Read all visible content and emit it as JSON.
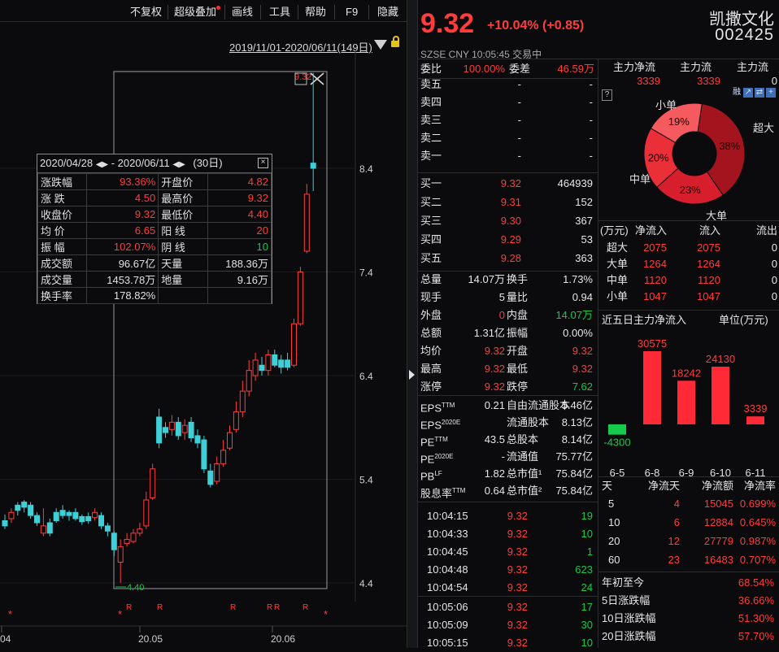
{
  "toolbar": {
    "items": [
      "不复权",
      "超级叠加",
      "画线",
      "工具",
      "帮助",
      "F9",
      "隐藏"
    ],
    "range": "2019/11/01-2020/06/11(149日)"
  },
  "chart_data": {
    "type": "candlestick",
    "yticks": [
      8.4,
      7.4,
      6.4,
      5.4,
      4.4
    ],
    "xticks": [
      "04",
      "20.05",
      "20.06"
    ],
    "low_marker": "4.40",
    "high_marker": "9.32",
    "candles": [
      {
        "o": 4.95,
        "c": 5.0,
        "h": 5.06,
        "l": 4.92,
        "up": false
      },
      {
        "o": 5.02,
        "c": 5.08,
        "h": 5.12,
        "l": 4.98,
        "up": true
      },
      {
        "o": 5.1,
        "c": 5.15,
        "h": 5.18,
        "l": 5.05,
        "up": false
      },
      {
        "o": 5.13,
        "c": 5.18,
        "h": 5.2,
        "l": 5.08,
        "up": false
      },
      {
        "o": 5.15,
        "c": 5.05,
        "h": 5.18,
        "l": 5.02,
        "up": false
      },
      {
        "o": 5.05,
        "c": 4.98,
        "h": 5.08,
        "l": 4.95,
        "up": false
      },
      {
        "o": 4.95,
        "c": 4.88,
        "h": 5.12,
        "l": 4.85,
        "up": true
      },
      {
        "o": 4.88,
        "c": 4.98,
        "h": 5.02,
        "l": 4.85,
        "up": false
      },
      {
        "o": 5.0,
        "c": 5.08,
        "h": 5.12,
        "l": 4.98,
        "up": false
      },
      {
        "o": 5.1,
        "c": 5.05,
        "h": 5.15,
        "l": 5.02,
        "up": false
      },
      {
        "o": 5.05,
        "c": 5.08,
        "h": 5.1,
        "l": 5.0,
        "up": false
      },
      {
        "o": 5.08,
        "c": 5.02,
        "h": 5.12,
        "l": 5.0,
        "up": false
      },
      {
        "o": 5.04,
        "c": 4.99,
        "h": 5.06,
        "l": 4.96,
        "up": false
      },
      {
        "o": 5.0,
        "c": 5.04,
        "h": 5.08,
        "l": 4.97,
        "up": false
      },
      {
        "o": 5.08,
        "c": 5.03,
        "h": 5.12,
        "l": 5.0,
        "up": true
      },
      {
        "o": 5.05,
        "c": 4.95,
        "h": 5.08,
        "l": 4.92,
        "up": false
      },
      {
        "o": 4.95,
        "c": 4.9,
        "h": 4.98,
        "l": 4.85,
        "up": false
      },
      {
        "o": 4.88,
        "c": 4.72,
        "h": 4.9,
        "l": 4.66,
        "up": false
      },
      {
        "o": 4.6,
        "c": 4.75,
        "h": 4.82,
        "l": 4.4,
        "up": true
      },
      {
        "o": 4.78,
        "c": 4.82,
        "h": 4.88,
        "l": 4.75,
        "up": true
      },
      {
        "o": 4.8,
        "c": 4.88,
        "h": 4.92,
        "l": 4.78,
        "up": true
      },
      {
        "o": 4.88,
        "c": 4.92,
        "h": 4.98,
        "l": 4.85,
        "up": true
      },
      {
        "o": 4.95,
        "c": 5.2,
        "h": 5.28,
        "l": 4.92,
        "up": true
      },
      {
        "o": 5.22,
        "c": 5.5,
        "h": 5.55,
        "l": 5.2,
        "up": true
      },
      {
        "o": 5.75,
        "c": 6.0,
        "h": 6.08,
        "l": 5.7,
        "up": false
      },
      {
        "o": 5.9,
        "c": 5.85,
        "h": 5.95,
        "l": 5.8,
        "up": false
      },
      {
        "o": 5.88,
        "c": 5.95,
        "h": 6.02,
        "l": 5.82,
        "up": true
      },
      {
        "o": 5.95,
        "c": 5.82,
        "h": 6.0,
        "l": 5.78,
        "up": false
      },
      {
        "o": 5.85,
        "c": 5.92,
        "h": 5.98,
        "l": 5.78,
        "up": true
      },
      {
        "o": 5.95,
        "c": 5.8,
        "h": 6.0,
        "l": 5.76,
        "up": false
      },
      {
        "o": 5.82,
        "c": 5.75,
        "h": 5.88,
        "l": 5.7,
        "up": false
      },
      {
        "o": 5.78,
        "c": 5.5,
        "h": 5.82,
        "l": 5.46,
        "up": false
      },
      {
        "o": 5.48,
        "c": 5.35,
        "h": 5.55,
        "l": 5.32,
        "up": false
      },
      {
        "o": 5.38,
        "c": 5.55,
        "h": 5.62,
        "l": 5.35,
        "up": true
      },
      {
        "o": 5.55,
        "c": 5.68,
        "h": 5.78,
        "l": 5.52,
        "up": true
      },
      {
        "o": 5.7,
        "c": 5.85,
        "h": 5.92,
        "l": 5.68,
        "up": true
      },
      {
        "o": 5.88,
        "c": 6.05,
        "h": 6.15,
        "l": 5.85,
        "up": true
      },
      {
        "o": 6.05,
        "c": 6.25,
        "h": 6.35,
        "l": 6.0,
        "up": true
      },
      {
        "o": 6.25,
        "c": 6.45,
        "h": 6.55,
        "l": 6.2,
        "up": true
      },
      {
        "o": 6.4,
        "c": 6.55,
        "h": 6.62,
        "l": 6.35,
        "up": true
      },
      {
        "o": 6.5,
        "c": 6.45,
        "h": 6.58,
        "l": 6.4,
        "up": false
      },
      {
        "o": 6.45,
        "c": 6.6,
        "h": 6.65,
        "l": 6.4,
        "up": true
      },
      {
        "o": 6.6,
        "c": 6.5,
        "h": 6.65,
        "l": 6.48,
        "up": false
      },
      {
        "o": 6.48,
        "c": 6.55,
        "h": 6.6,
        "l": 6.42,
        "up": false
      },
      {
        "o": 6.55,
        "c": 6.48,
        "h": 6.62,
        "l": 6.45,
        "up": false
      },
      {
        "o": 6.5,
        "c": 6.9,
        "h": 6.95,
        "l": 6.48,
        "up": true
      },
      {
        "o": 6.9,
        "c": 7.4,
        "h": 7.45,
        "l": 6.88,
        "up": true
      },
      {
        "o": 7.6,
        "c": 8.15,
        "h": 8.25,
        "l": 7.58,
        "up": true
      },
      {
        "o": 8.4,
        "c": 8.45,
        "h": 9.32,
        "l": 8.18,
        "up": false
      }
    ],
    "r_marks": [
      "R",
      "R",
      "R",
      "R",
      "R",
      "R",
      "R"
    ],
    "star_marks": [
      "*",
      "*",
      "*"
    ]
  },
  "stats": {
    "date_from": "2020/04/28",
    "date_to": "2020/06/11",
    "days": "(30日)",
    "rows": [
      [
        "涨跌幅",
        "93.36%",
        "开盘价",
        "4.82"
      ],
      [
        "涨  跌",
        "4.50",
        "最高价",
        "9.32"
      ],
      [
        "收盘价",
        "9.32",
        "最低价",
        "4.40"
      ],
      [
        "均  价",
        "6.65",
        "阳  线",
        "20"
      ],
      [
        "振  幅",
        "102.07%",
        "阴  线",
        "10"
      ],
      [
        "成交额",
        "96.67亿",
        "天量",
        "188.36万"
      ],
      [
        "成交量",
        "1453.78万",
        "地量",
        "9.16万"
      ],
      [
        "换手率",
        "178.82%",
        "",
        ""
      ]
    ]
  },
  "quote": {
    "price": "9.32",
    "change": "+10.04% (+0.85)",
    "name": "凯撒文化",
    "code": "002425",
    "market": "SZSE  CNY  10:05:45  交易中"
  },
  "weibi": {
    "l1": "委比",
    "v1": "100.00%",
    "l2": "委差",
    "v2": "46.59万"
  },
  "sells": [
    [
      "卖五",
      "-",
      "-"
    ],
    [
      "卖四",
      "-",
      "-"
    ],
    [
      "卖三",
      "-",
      "-"
    ],
    [
      "卖二",
      "-",
      "-"
    ],
    [
      "卖一",
      "-",
      "-"
    ]
  ],
  "buys": [
    [
      "买一",
      "9.32",
      "464939"
    ],
    [
      "买二",
      "9.31",
      "152"
    ],
    [
      "买三",
      "9.30",
      "367"
    ],
    [
      "买四",
      "9.29",
      "53"
    ],
    [
      "买五",
      "9.28",
      "363"
    ]
  ],
  "summary": [
    [
      "总量",
      "14.07万",
      "换手",
      "1.73%"
    ],
    [
      "现手",
      "5",
      "量比",
      "0.94"
    ],
    [
      "外盘",
      "0",
      "内盘",
      "14.07万"
    ],
    [
      "总额",
      "1.31亿",
      "振幅",
      "0.00%"
    ],
    [
      "均价",
      "9.32",
      "开盘",
      "9.32"
    ],
    [
      "最高",
      "9.32",
      "最低",
      "9.32"
    ],
    [
      "涨停",
      "9.32",
      "跌停",
      "7.62"
    ]
  ],
  "fundamentals": [
    [
      "EPS",
      "TTM",
      "0.21",
      "自由流通股本",
      "5.46亿"
    ],
    [
      "EPS",
      "2020E",
      "",
      "流通股本",
      "8.13亿"
    ],
    [
      "PE",
      "TTM",
      "43.5",
      "总股本",
      "8.14亿"
    ],
    [
      "PE",
      "2020E",
      "-",
      "流通值",
      "75.77亿"
    ],
    [
      "PB",
      "LF",
      "1.82",
      "总市值¹",
      "75.84亿"
    ],
    [
      "股息率",
      "TTM",
      "0.64",
      "总市值²",
      "75.84亿"
    ]
  ],
  "ticks": [
    [
      "10:04:15",
      "9.32",
      "19"
    ],
    [
      "10:04:33",
      "9.32",
      "10"
    ],
    [
      "10:04:45",
      "9.32",
      "1"
    ],
    [
      "10:04:48",
      "9.32",
      "623"
    ],
    [
      "10:04:54",
      "9.32",
      "24"
    ],
    [
      "10:05:06",
      "9.32",
      "17"
    ],
    [
      "10:05:09",
      "9.32",
      "30"
    ],
    [
      "10:05:15",
      "9.32",
      "10"
    ]
  ],
  "mainflow": {
    "headers": [
      "主力净流",
      "主力流",
      "主力流"
    ],
    "values": [
      "3339",
      "3339",
      "0"
    ],
    "icons": [
      "融",
      "↗",
      "⇄",
      "+"
    ]
  },
  "pie": {
    "labels": [
      "超大",
      "大单",
      "中单",
      "小单"
    ],
    "values": [
      38,
      23,
      20,
      19
    ],
    "pcts": [
      "38%",
      "23%",
      "20%",
      "19%"
    ],
    "colors": [
      "#a3141f",
      "#d71e2c",
      "#eb2f39",
      "#f55a5e"
    ]
  },
  "flowtable": {
    "headers": [
      "(万元)",
      "净流入",
      "流入",
      "流出"
    ],
    "rows": [
      [
        "超大",
        "2075",
        "2075",
        "0"
      ],
      [
        "大单",
        "1264",
        "1264",
        "0"
      ],
      [
        "中单",
        "1120",
        "1120",
        "0"
      ],
      [
        "小单",
        "1047",
        "1047",
        "0"
      ]
    ]
  },
  "five_day": {
    "title": "近五日主力净流入",
    "unit": "单位(万元)",
    "categories": [
      "6-5",
      "6-8",
      "6-9",
      "6-10",
      "6-11"
    ],
    "values": [
      -4300,
      30575,
      18242,
      24130,
      3339
    ],
    "labels": [
      "-4300",
      "30575",
      "18242",
      "24130",
      "3339"
    ]
  },
  "period_table": {
    "headers": [
      "天",
      "净流天",
      "净流额",
      "净流率"
    ],
    "rows": [
      [
        "5",
        "4",
        "15045",
        "0.699%"
      ],
      [
        "10",
        "6",
        "12884",
        "0.645%"
      ],
      [
        "20",
        "12",
        "27779",
        "0.987%"
      ],
      [
        "60",
        "23",
        "16483",
        "0.707%"
      ]
    ]
  },
  "returns": [
    [
      "年初至今",
      "68.54%"
    ],
    [
      "5日涨跌幅",
      "36.66%"
    ],
    [
      "10日涨跌幅",
      "51.30%"
    ],
    [
      "20日涨跌幅",
      "57.70%"
    ]
  ]
}
